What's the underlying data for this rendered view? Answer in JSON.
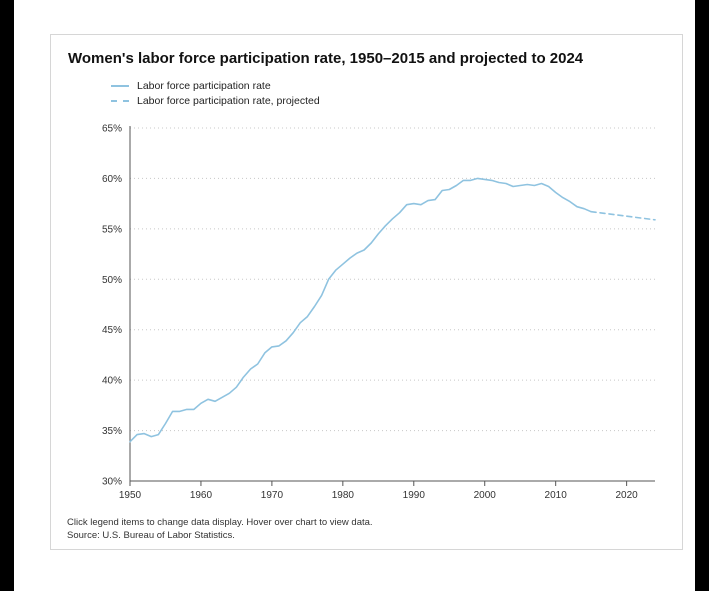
{
  "chart_data": {
    "type": "line",
    "title": "Women's labor force participation rate, 1950–2015 and projected to 2024",
    "xlabel": "",
    "ylabel": "",
    "xlim": [
      1950,
      2024
    ],
    "ylim": [
      30,
      65
    ],
    "x_ticks": [
      "1950",
      "1960",
      "1970",
      "1980",
      "1990",
      "2000",
      "2010",
      "2020"
    ],
    "y_ticks": [
      "30%",
      "35%",
      "40%",
      "45%",
      "50%",
      "55%",
      "60%",
      "65%"
    ],
    "grid": "horizontal dotted",
    "legend_position": "top-left",
    "series": [
      {
        "name": "Labor force participation rate",
        "style": "solid",
        "x": [
          1950,
          1951,
          1952,
          1953,
          1954,
          1955,
          1956,
          1957,
          1958,
          1959,
          1960,
          1961,
          1962,
          1963,
          1964,
          1965,
          1966,
          1967,
          1968,
          1969,
          1970,
          1971,
          1972,
          1973,
          1974,
          1975,
          1976,
          1977,
          1978,
          1979,
          1980,
          1981,
          1982,
          1983,
          1984,
          1985,
          1986,
          1987,
          1988,
          1989,
          1990,
          1991,
          1992,
          1993,
          1994,
          1995,
          1996,
          1997,
          1998,
          1999,
          2000,
          2001,
          2002,
          2003,
          2004,
          2005,
          2006,
          2007,
          2008,
          2009,
          2010,
          2011,
          2012,
          2013,
          2014,
          2015
        ],
        "y": [
          33.9,
          34.6,
          34.7,
          34.4,
          34.6,
          35.7,
          36.9,
          36.9,
          37.1,
          37.1,
          37.7,
          38.1,
          37.9,
          38.3,
          38.7,
          39.3,
          40.3,
          41.1,
          41.6,
          42.7,
          43.3,
          43.4,
          43.9,
          44.7,
          45.7,
          46.3,
          47.3,
          48.4,
          50.0,
          50.9,
          51.5,
          52.1,
          52.6,
          52.9,
          53.6,
          54.5,
          55.3,
          56.0,
          56.6,
          57.4,
          57.5,
          57.4,
          57.8,
          57.9,
          58.8,
          58.9,
          59.3,
          59.8,
          59.8,
          60.0,
          59.9,
          59.8,
          59.6,
          59.5,
          59.2,
          59.3,
          59.4,
          59.3,
          59.5,
          59.2,
          58.6,
          58.1,
          57.7,
          57.2,
          57.0,
          56.7
        ]
      },
      {
        "name": "Labor force participation rate, projected",
        "style": "dashed",
        "x": [
          2015,
          2024
        ],
        "y": [
          56.7,
          55.9
        ]
      }
    ],
    "color": "#8fc3e0"
  },
  "notes": {
    "interaction": "Click legend items to change data display. Hover over chart to view data.",
    "source": "Source: U.S. Bureau of Labor Statistics."
  }
}
